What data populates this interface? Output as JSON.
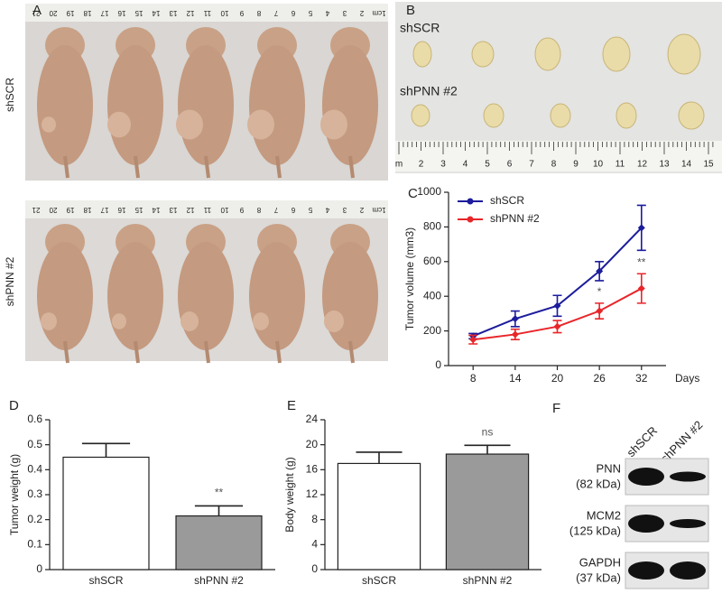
{
  "panels": {
    "A": {
      "letter": "A",
      "row_labels": [
        "shSCR",
        "shPNN #2"
      ],
      "ruler_labels": [
        "1cm",
        "2",
        "3",
        "4",
        "5",
        "6",
        "7",
        "8",
        "9",
        "10",
        "11",
        "12",
        "13",
        "14",
        "15",
        "16",
        "17",
        "18",
        "19",
        "20",
        "21"
      ]
    },
    "B": {
      "letter": "B",
      "row_labels": [
        "shSCR",
        "shPNN #2"
      ],
      "ruler_labels": [
        "m",
        "2",
        "3",
        "4",
        "5",
        "6",
        "7",
        "8",
        "9",
        "10",
        "11",
        "12",
        "13",
        "14",
        "15"
      ]
    },
    "F": {
      "letter": "F",
      "columns": [
        "shSCR",
        "shPNN #2"
      ],
      "rows": [
        {
          "name": "PNN",
          "size": "(82 kDa)"
        },
        {
          "name": "MCM2",
          "size": "(125 kDa)"
        },
        {
          "name": "GAPDH",
          "size": "(37 kDa)"
        }
      ]
    }
  },
  "chart_data": [
    {
      "type": "line",
      "panel_label": "C",
      "xlabel": "Days",
      "ylabel": "Tumor volume (mm3)",
      "x": [
        8,
        14,
        20,
        26,
        32
      ],
      "xlim": [
        4.5,
        35.5
      ],
      "xticks": [
        8,
        14,
        20,
        26,
        32
      ],
      "ylim": [
        0,
        1000
      ],
      "yticks": [
        0,
        200,
        400,
        600,
        800,
        1000
      ],
      "legend": "top-left",
      "series": [
        {
          "name": "shSCR",
          "color": "#1c1c9c",
          "values": [
            170,
            270,
            345,
            545,
            795
          ],
          "errors": [
            15,
            45,
            60,
            55,
            130
          ]
        },
        {
          "name": "shPNN #2",
          "color": "#e8262a",
          "values": [
            150,
            180,
            225,
            315,
            445
          ],
          "errors": [
            25,
            30,
            35,
            45,
            85
          ]
        }
      ],
      "annotations": [
        {
          "text": "*",
          "x": 26
        },
        {
          "text": "**",
          "x": 32
        }
      ]
    },
    {
      "type": "bar",
      "panel_label": "D",
      "ylabel": "Tumor weight (g)",
      "categories": [
        "shSCR",
        "shPNN #2"
      ],
      "values": [
        0.45,
        0.215
      ],
      "errors": [
        0.055,
        0.04
      ],
      "colors": [
        "#ffffff",
        "#9a9a9a"
      ],
      "ylim": [
        0,
        0.6
      ],
      "yticks": [
        0,
        0.1,
        0.2,
        0.3,
        0.4,
        0.5,
        0.6
      ],
      "annotations": [
        {
          "text": "**",
          "category": "shPNN #2"
        }
      ]
    },
    {
      "type": "bar",
      "panel_label": "E",
      "ylabel": "Body weight (g)",
      "categories": [
        "shSCR",
        "shPNN #2"
      ],
      "values": [
        17,
        18.5
      ],
      "errors": [
        1.8,
        1.4
      ],
      "colors": [
        "#ffffff",
        "#9a9a9a"
      ],
      "ylim": [
        0,
        24
      ],
      "yticks": [
        0,
        4,
        8,
        12,
        16,
        20,
        24
      ],
      "annotations": [
        {
          "text": "ns",
          "category": "shPNN #2"
        }
      ]
    }
  ]
}
